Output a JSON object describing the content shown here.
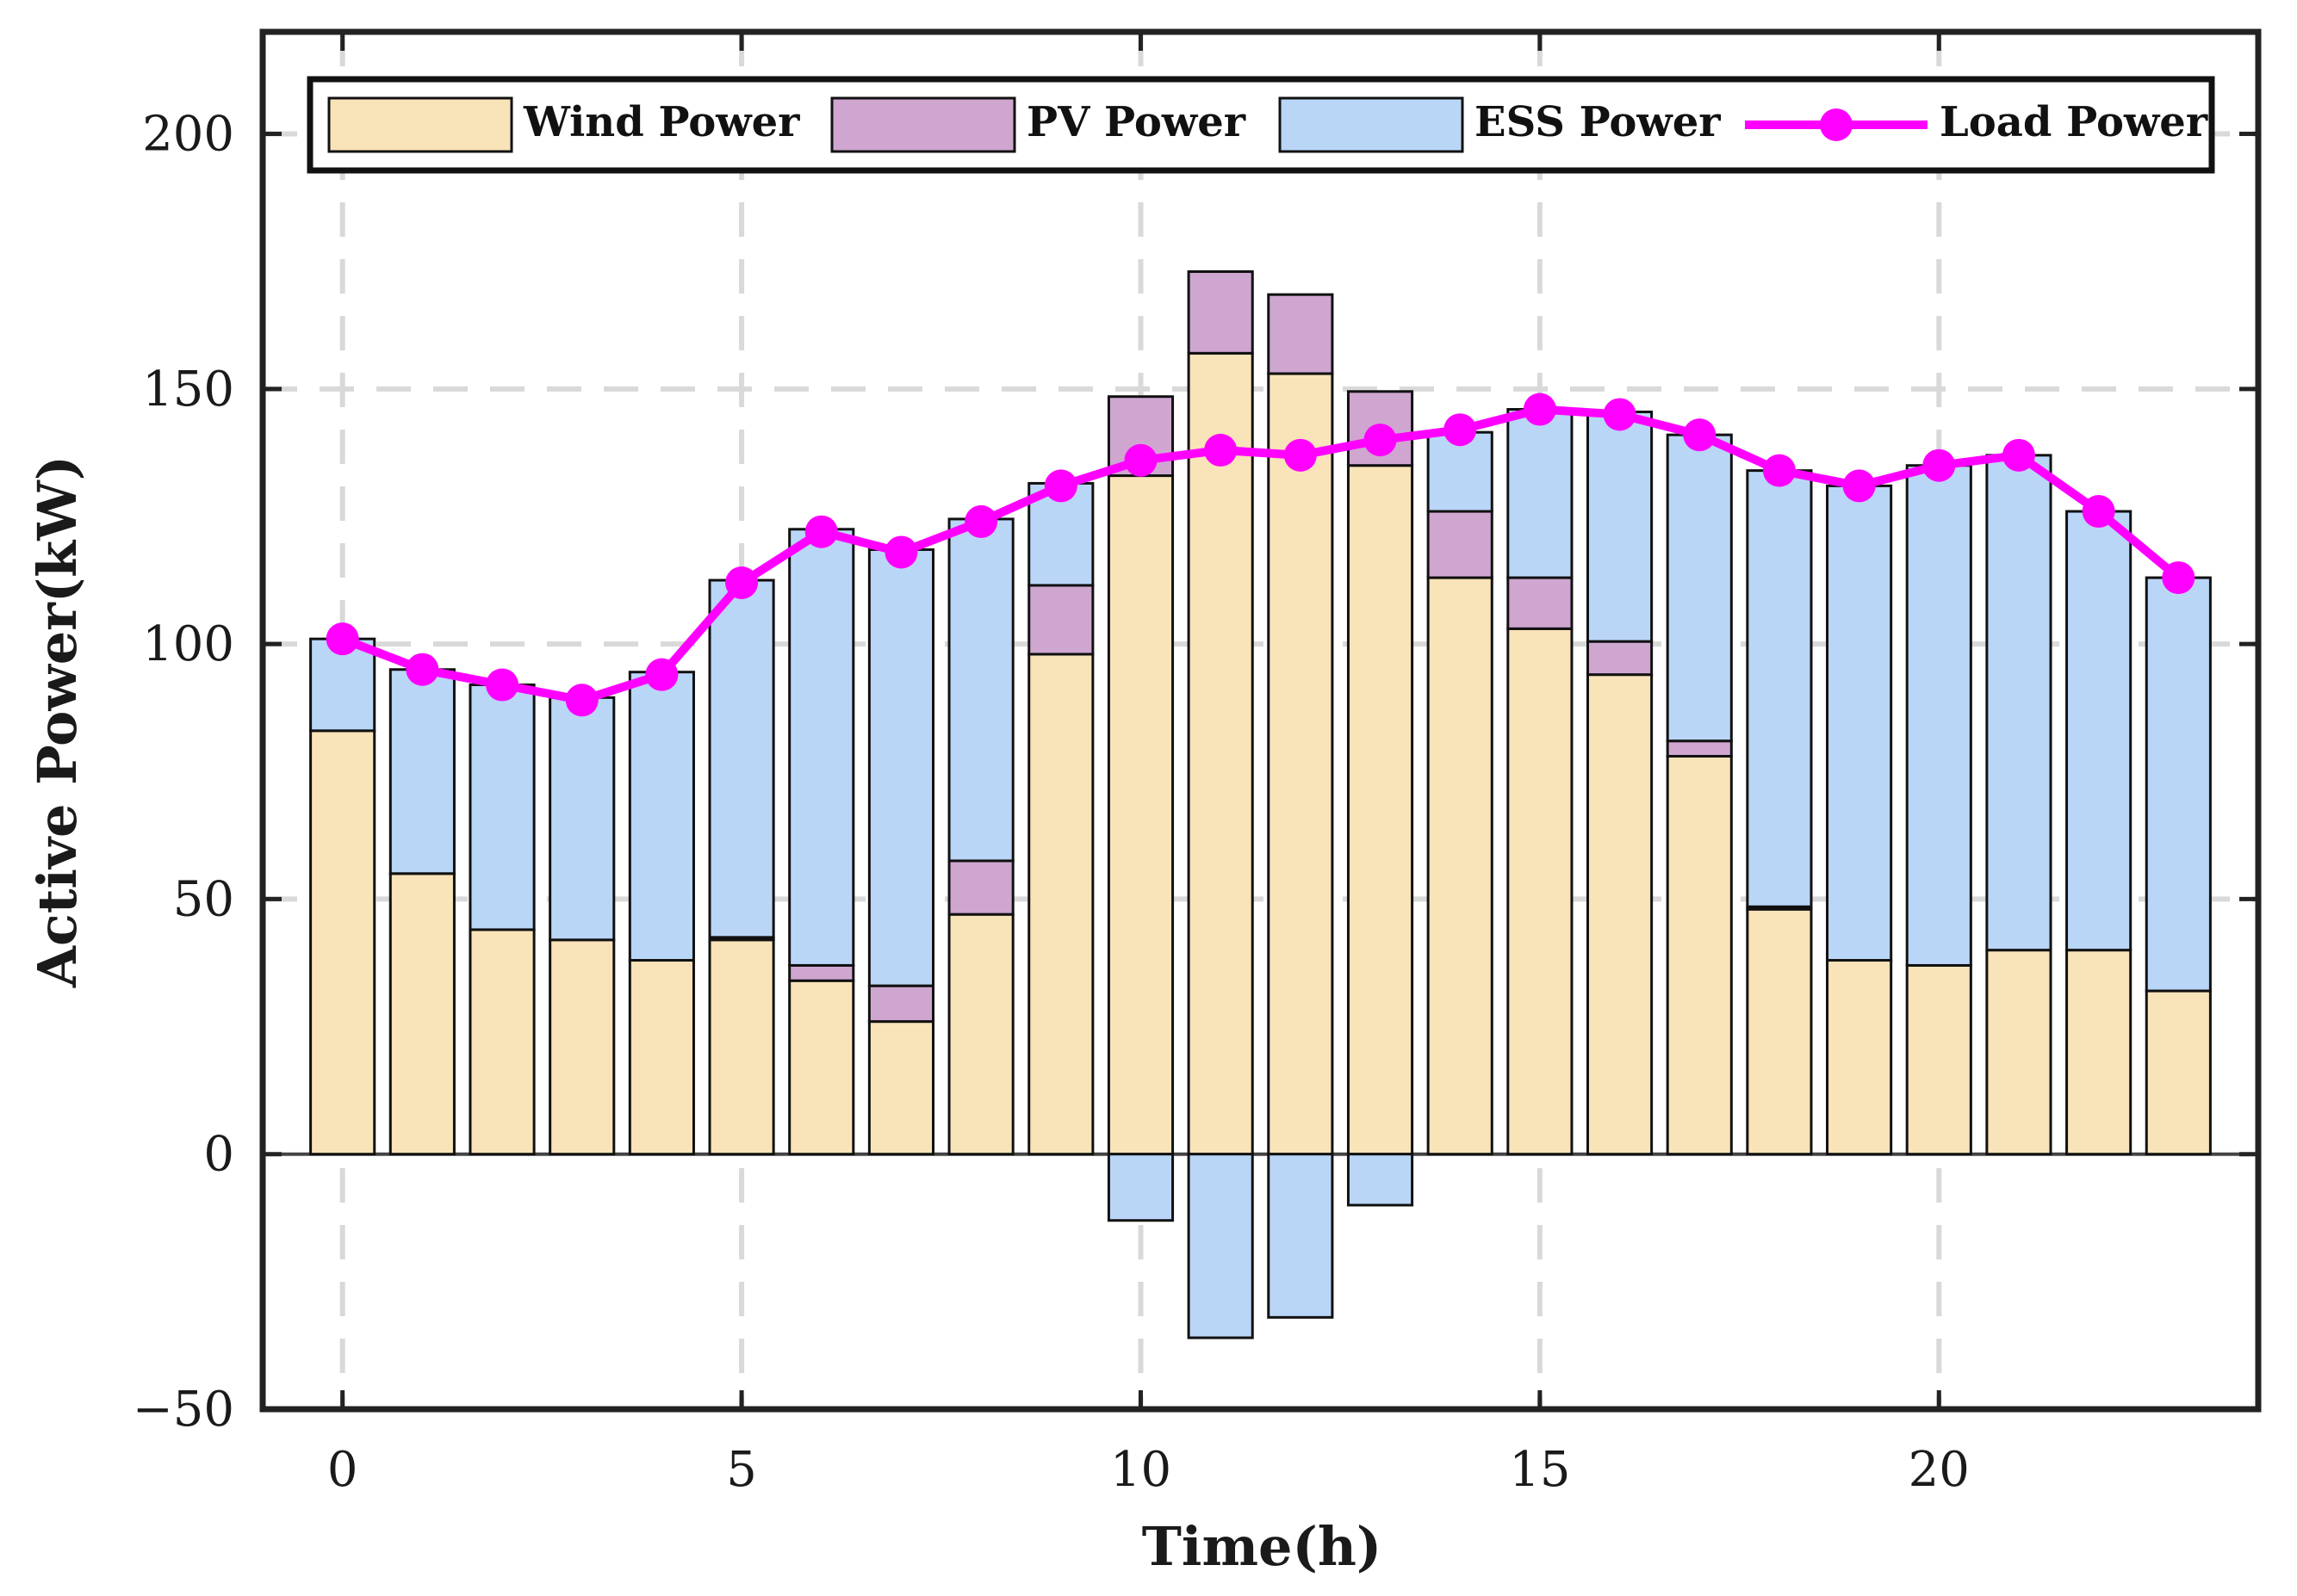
{
  "chart_data": {
    "type": "bar",
    "stacked": true,
    "title": "",
    "xlabel": "Time(h)",
    "ylabel": "Active Power(kW)",
    "xlim": [
      -1,
      24
    ],
    "ylim": [
      -50,
      220
    ],
    "xticks": [
      0,
      5,
      10,
      15,
      20
    ],
    "yticks": [
      -50,
      0,
      50,
      100,
      150,
      200
    ],
    "ytick_labels": [
      "−50",
      "0",
      "50",
      "100",
      "150",
      "200"
    ],
    "grid": "dashed",
    "legend_position": "top",
    "x": [
      0,
      1,
      2,
      3,
      4,
      5,
      6,
      7,
      8,
      9,
      10,
      11,
      12,
      13,
      14,
      15,
      16,
      17,
      18,
      19,
      20,
      21,
      22,
      23
    ],
    "series": [
      {
        "name": "Wind Power",
        "kind": "bar",
        "color": "#f9e3b8",
        "values": [
          83,
          55,
          44,
          42,
          38,
          42,
          34,
          26,
          47,
          98,
          133,
          157,
          153,
          135,
          113,
          103,
          94,
          78,
          48,
          38,
          37,
          40,
          40,
          32
        ]
      },
      {
        "name": "PV Power",
        "kind": "bar",
        "color": "#cfa6d0",
        "values": [
          0,
          0,
          0,
          0,
          0,
          0.5,
          3,
          7,
          10.5,
          13.5,
          15.5,
          16,
          15.5,
          14.5,
          13,
          10,
          6.5,
          3,
          0.5,
          0,
          0,
          0,
          0,
          0
        ]
      },
      {
        "name": "ESS Power",
        "kind": "bar",
        "color": "#bad6f7",
        "values": [
          18,
          40,
          48,
          47.5,
          56.5,
          70,
          85.5,
          85.5,
          67,
          20,
          -13,
          -36,
          -32,
          -10,
          15.5,
          33,
          45,
          60,
          85.5,
          93,
          98,
          97,
          86,
          81
        ]
      },
      {
        "name": "Load Power",
        "kind": "line",
        "color": "#ff00ff",
        "values": [
          101,
          95,
          92,
          89,
          94,
          112,
          122,
          118,
          124,
          131,
          136,
          138,
          137,
          140,
          142,
          146,
          145,
          141,
          134,
          131,
          135,
          137,
          126,
          113
        ]
      }
    ]
  }
}
